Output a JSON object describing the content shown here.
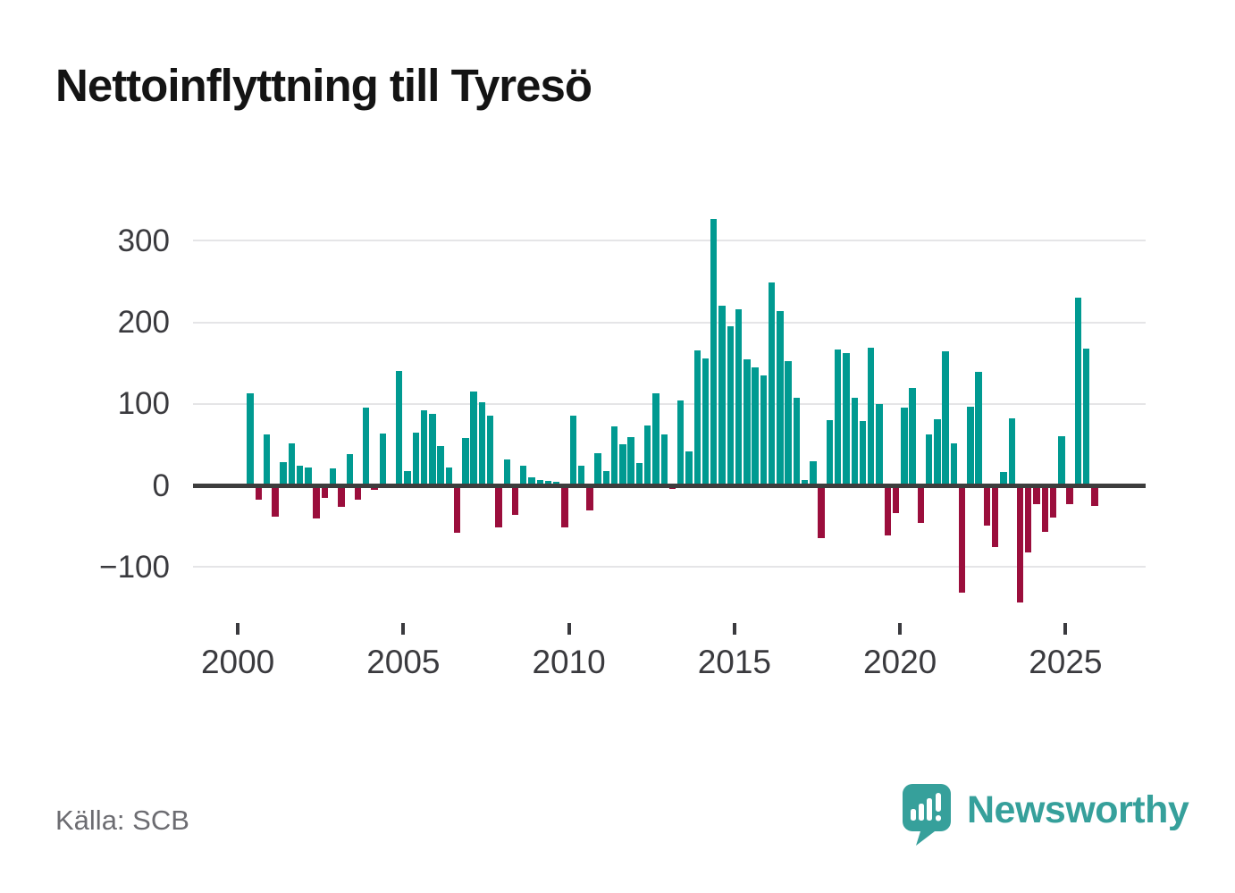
{
  "header": {
    "title": "Nettoinflyttning till Tyresö"
  },
  "source": {
    "label": "Källa: SCB"
  },
  "branding": {
    "name": "Newsworthy",
    "logo_icon": "newsworthy-speech-bubble-chart-icon"
  },
  "colors": {
    "positive": "#009a91",
    "negative": "#9b0e3c",
    "zero_line": "#3d3d3d",
    "gridline": "#e5e5e7",
    "axis_text": "#3a3a3e",
    "title_text": "#141414",
    "source_text": "#6c6c71",
    "brand_teal": "#36a09b",
    "background": "#ffffff"
  },
  "chart_data": {
    "type": "bar",
    "title": "Nettoinflyttning till Tyresö",
    "period": "quarterly",
    "start": "2000 Q2",
    "end": "2025 Q4",
    "grid": "horizontal",
    "legend": "none",
    "ylim": [
      -160,
      340
    ],
    "y_ticks": [
      300,
      200,
      100,
      0,
      -100
    ],
    "y_tick_labels": [
      "300",
      "200",
      "100",
      "0",
      "−100"
    ],
    "x_ticks": [
      2000,
      2005,
      2010,
      2015,
      2020,
      2025
    ],
    "x_tick_labels": [
      "2000",
      "2005",
      "2010",
      "2015",
      "2020",
      "2025"
    ],
    "values": [
      113,
      -17,
      63,
      -38,
      28,
      52,
      24,
      22,
      -41,
      -15,
      21,
      -26,
      38,
      -18,
      95,
      -6,
      64,
      0,
      140,
      17,
      65,
      92,
      88,
      48,
      22,
      -58,
      58,
      115,
      102,
      86,
      -52,
      32,
      -36,
      24,
      10,
      7,
      6,
      4,
      -51,
      86,
      24,
      -31,
      39,
      17,
      72,
      50,
      59,
      27,
      73,
      113,
      62,
      -4,
      104,
      42,
      166,
      156,
      327,
      220,
      195,
      216,
      155,
      145,
      135,
      249,
      214,
      152,
      107,
      7,
      30,
      -65,
      80,
      167,
      162,
      107,
      79,
      169,
      100,
      -61,
      -34,
      95,
      120,
      -46,
      63,
      81,
      164,
      51,
      -132,
      96,
      139,
      -49,
      -76,
      16,
      82,
      -144,
      -82,
      -23,
      -57,
      -40,
      60,
      -23,
      230,
      168,
      -25
    ]
  }
}
